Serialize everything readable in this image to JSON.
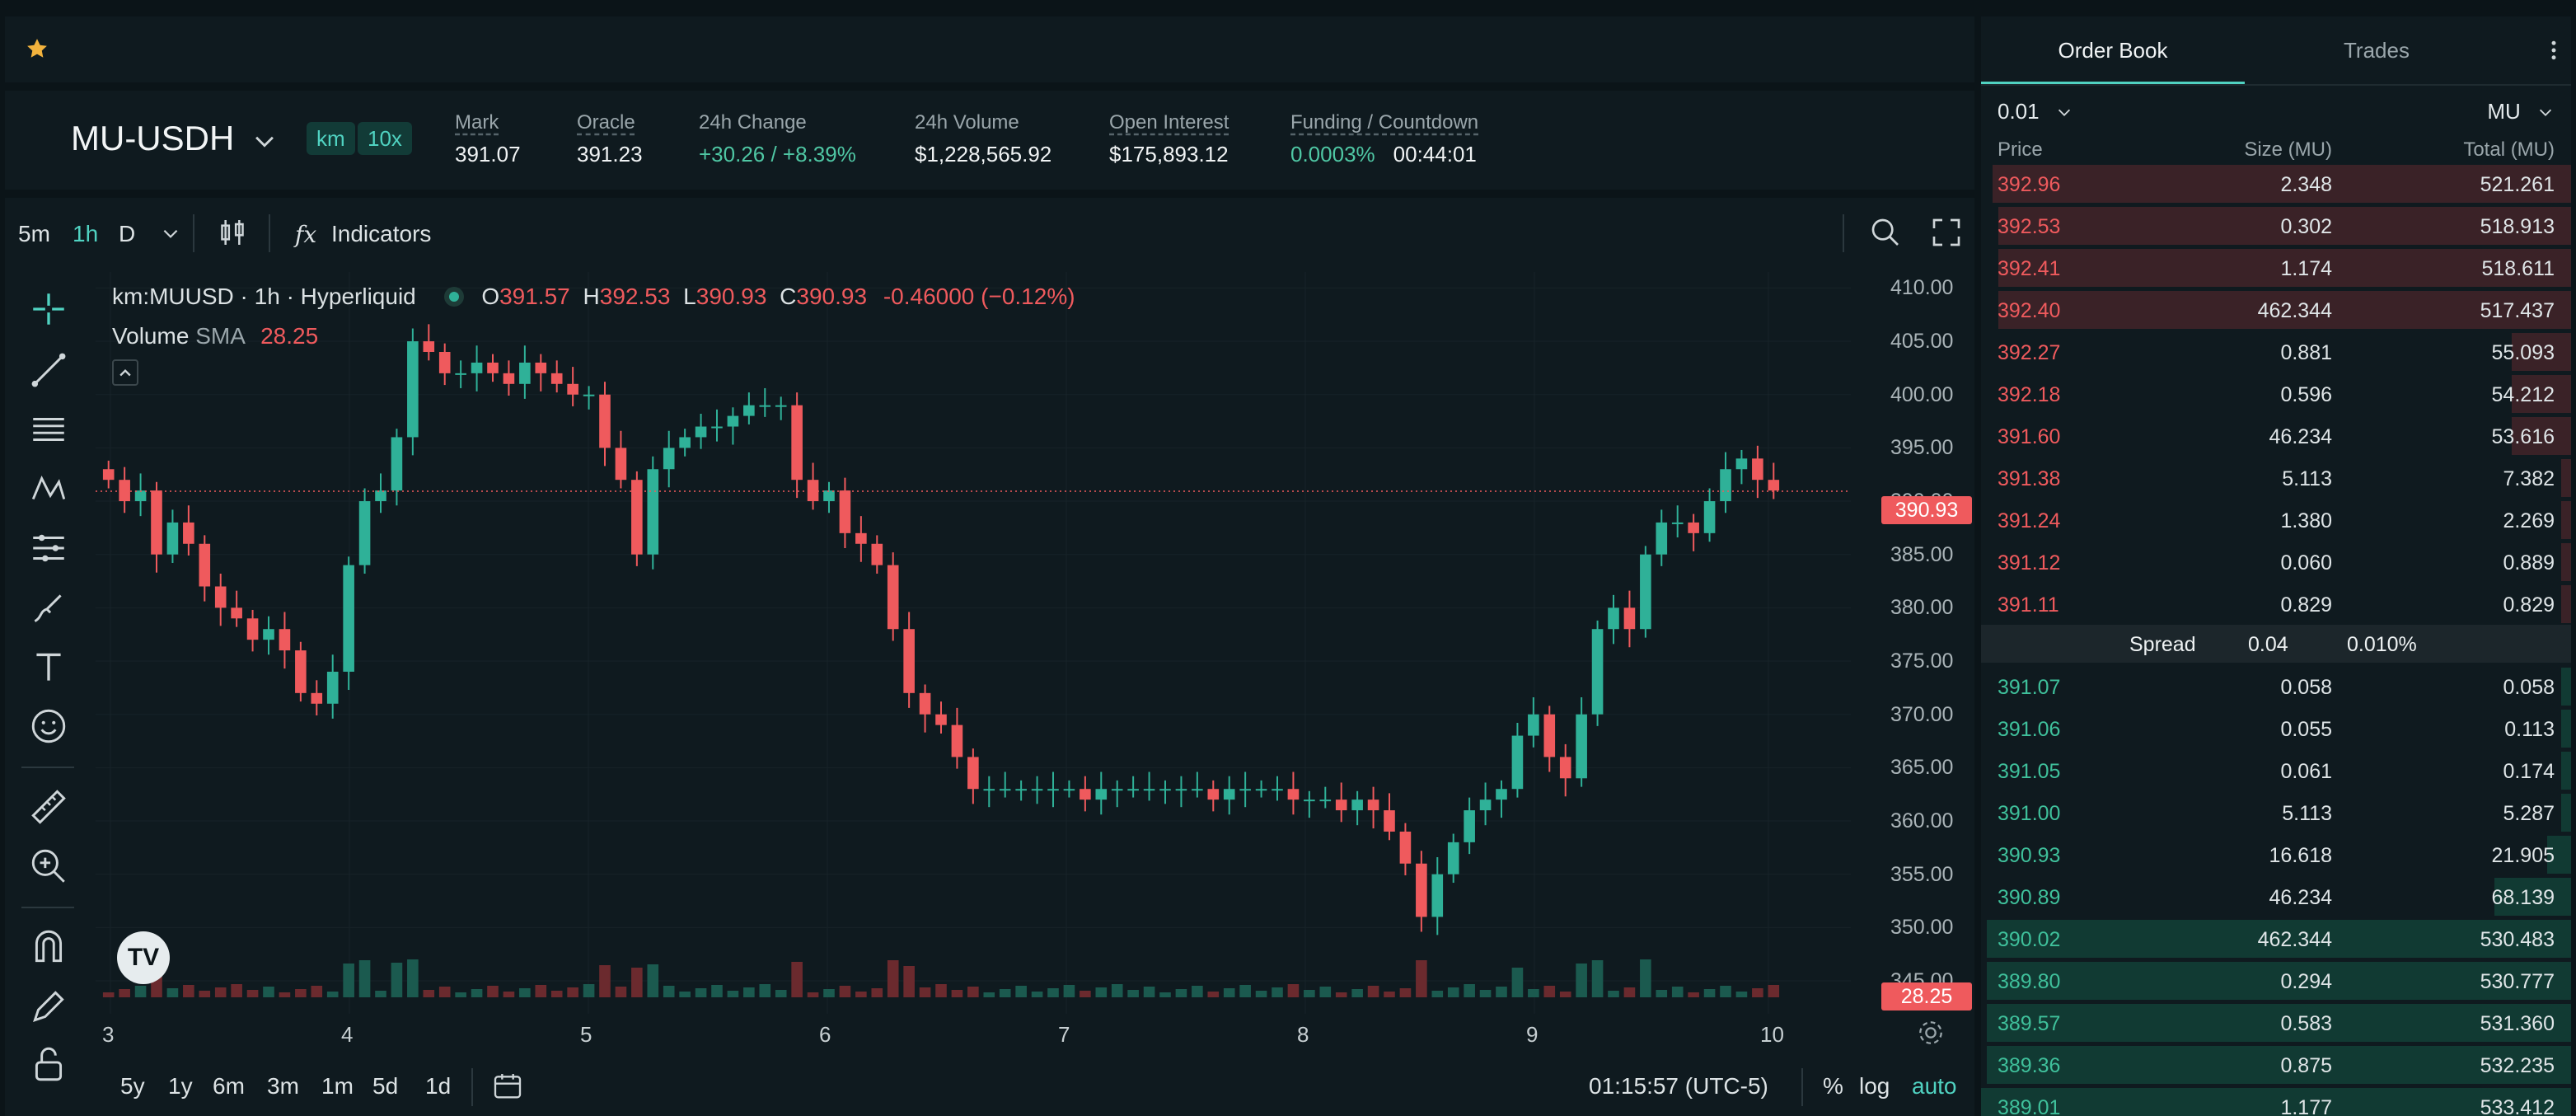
{
  "market": {
    "symbol": "MU-USDH",
    "dex_badge": "km",
    "leverage_badge": "10x",
    "stats": [
      {
        "label": "Mark",
        "value": "391.07",
        "underline": true
      },
      {
        "label": "Oracle",
        "value": "391.23",
        "underline": true
      },
      {
        "label": "24h Change",
        "value": "+30.26 / +8.39%",
        "underline": false,
        "positive": true
      },
      {
        "label": "24h Volume",
        "value": "$1,228,565.92",
        "underline": false
      },
      {
        "label": "Open Interest",
        "value": "$175,893.12",
        "underline": true
      },
      {
        "label": "Funding / Countdown",
        "value": "0.0003%",
        "value2": "00:44:01",
        "underline": true
      }
    ]
  },
  "chart_toolbar": {
    "intervals": [
      "5m",
      "1h",
      "D"
    ],
    "active_interval": "1h",
    "indicators_label": "Indicators"
  },
  "chart_legend": {
    "title": "km:MUUSD · 1h · Hyperliquid",
    "o_label": "O",
    "o_value": "391.57",
    "h_label": "H",
    "h_value": "392.53",
    "l_label": "L",
    "l_value": "390.93",
    "c_label": "C",
    "c_value": "390.93",
    "change": "-0.46000 (−0.12%)",
    "volume_label": "Volume",
    "sma_label": "SMA",
    "sma_value": "28.25"
  },
  "chart_data": {
    "type": "candlestick",
    "y_ticks": [
      "410.00",
      "405.00",
      "400.00",
      "395.00",
      "390.00",
      "385.00",
      "380.00",
      "375.00",
      "370.00",
      "365.00",
      "360.00",
      "355.00",
      "350.00",
      "345.00"
    ],
    "ylim": [
      345,
      411.5
    ],
    "x_ticks": [
      "3",
      "4",
      "5",
      "6",
      "7",
      "8",
      "9",
      "10"
    ],
    "last_price": "390.93",
    "volume_tag": "28.25",
    "close_path": [
      392,
      390,
      391,
      385,
      388,
      386,
      382,
      380,
      379,
      377,
      378,
      376,
      372,
      371,
      374,
      384,
      390,
      391,
      396,
      405,
      404,
      402,
      402,
      403,
      402,
      401,
      403,
      402,
      401,
      400,
      400,
      395,
      392,
      385,
      393,
      395,
      396,
      397,
      397,
      398,
      399,
      399,
      399,
      392,
      390,
      391,
      387,
      386,
      384,
      378,
      372,
      370,
      369,
      366,
      363,
      363,
      363,
      363,
      363,
      363,
      363,
      362,
      363,
      363,
      363,
      363,
      363,
      363,
      363,
      362,
      363,
      363,
      363,
      363,
      362,
      362,
      362,
      361,
      362,
      361,
      359,
      356,
      351,
      355,
      358,
      361,
      362,
      363,
      368,
      370,
      366,
      364,
      370,
      378,
      380,
      378,
      385,
      388,
      388,
      387,
      390,
      393,
      394,
      392,
      391
    ]
  },
  "chart_bottom": {
    "ranges": [
      "5y",
      "1y",
      "6m",
      "3m",
      "1m",
      "5d",
      "1d"
    ],
    "time": "01:15:57 (UTC-5)",
    "pct": "%",
    "log": "log",
    "auto": "auto"
  },
  "orderbook": {
    "tabs": [
      "Order Book",
      "Trades"
    ],
    "tick": "0.01",
    "unit": "MU",
    "headers": {
      "price": "Price",
      "size": "Size (MU)",
      "total": "Total (MU)"
    },
    "asks": [
      {
        "price": "392.96",
        "size": "2.348",
        "total": "521.261",
        "depth": 0.98
      },
      {
        "price": "392.53",
        "size": "0.302",
        "total": "518.913",
        "depth": 0.97
      },
      {
        "price": "392.41",
        "size": "1.174",
        "total": "518.611",
        "depth": 0.97
      },
      {
        "price": "392.40",
        "size": "462.344",
        "total": "517.437",
        "depth": 0.97
      },
      {
        "price": "392.27",
        "size": "0.881",
        "total": "55.093",
        "depth": 0.1
      },
      {
        "price": "392.18",
        "size": "0.596",
        "total": "54.212",
        "depth": 0.1
      },
      {
        "price": "391.60",
        "size": "46.234",
        "total": "53.616",
        "depth": 0.1
      },
      {
        "price": "391.38",
        "size": "5.113",
        "total": "7.382",
        "depth": 0.014
      },
      {
        "price": "391.24",
        "size": "1.380",
        "total": "2.269",
        "depth": 0.004
      },
      {
        "price": "391.12",
        "size": "0.060",
        "total": "0.889",
        "depth": 0.002
      },
      {
        "price": "391.11",
        "size": "0.829",
        "total": "0.829",
        "depth": 0.002
      }
    ],
    "spread": {
      "label": "Spread",
      "value": "0.04",
      "pct": "0.010%"
    },
    "bids": [
      {
        "price": "391.07",
        "size": "0.058",
        "total": "0.058",
        "depth": 0.001
      },
      {
        "price": "391.06",
        "size": "0.055",
        "total": "0.113",
        "depth": 0.002
      },
      {
        "price": "391.05",
        "size": "0.061",
        "total": "0.174",
        "depth": 0.003
      },
      {
        "price": "391.00",
        "size": "5.113",
        "total": "5.287",
        "depth": 0.01
      },
      {
        "price": "390.93",
        "size": "16.618",
        "total": "21.905",
        "depth": 0.041
      },
      {
        "price": "390.89",
        "size": "46.234",
        "total": "68.139",
        "depth": 0.13
      },
      {
        "price": "390.02",
        "size": "462.344",
        "total": "530.483",
        "depth": 0.99
      },
      {
        "price": "389.80",
        "size": "0.294",
        "total": "530.777",
        "depth": 0.99
      },
      {
        "price": "389.57",
        "size": "0.583",
        "total": "531.360",
        "depth": 0.99
      },
      {
        "price": "389.36",
        "size": "0.875",
        "total": "532.235",
        "depth": 0.99
      },
      {
        "price": "389.01",
        "size": "1.177",
        "total": "533.412",
        "depth": 1.0
      }
    ]
  },
  "colors": {
    "accent": "#50d2c1",
    "up": "#2fb198",
    "down": "#ef5a5d"
  }
}
